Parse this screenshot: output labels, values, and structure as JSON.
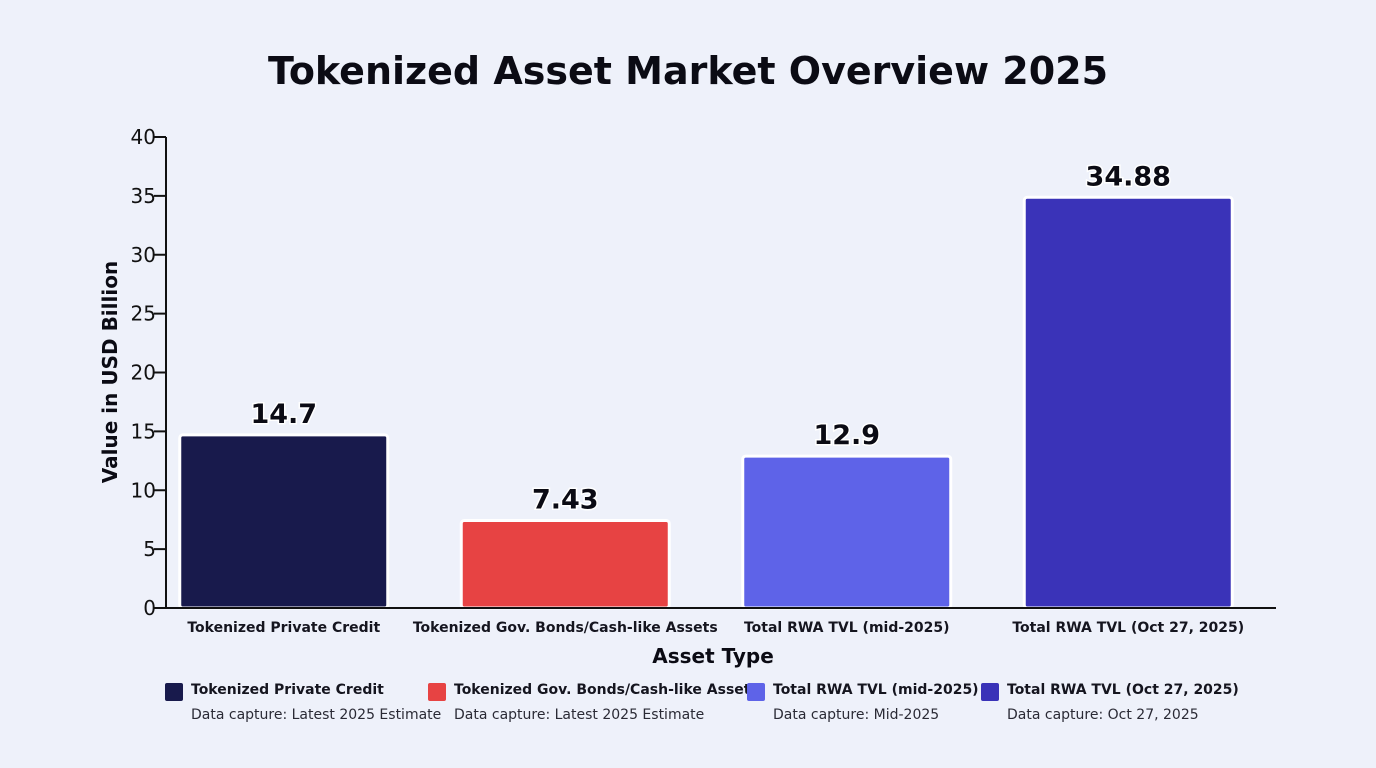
{
  "chart_data": {
    "type": "bar",
    "title": "Tokenized Asset Market Overview 2025",
    "xlabel": "Asset Type",
    "ylabel": "Value in USD Billion",
    "ylim": [
      0,
      40
    ],
    "yticks": [
      0,
      5,
      10,
      15,
      20,
      25,
      30,
      35,
      40
    ],
    "grid": false,
    "legend_position": "bottom",
    "categories": [
      "Tokenized Private Credit",
      "Tokenized Gov. Bonds/Cash-like Assets",
      "Total RWA TVL (mid-2025)",
      "Total RWA TVL (Oct 27, 2025)"
    ],
    "values": [
      14.7,
      7.43,
      12.9,
      34.88
    ],
    "value_labels": [
      "14.7",
      "7.43",
      "12.9",
      "34.88"
    ],
    "colors": [
      "#181a4c",
      "#e74343",
      "#5e63e8",
      "#3a33b8"
    ],
    "legend": [
      {
        "name": "Tokenized Private Credit",
        "note": "Data capture: Latest 2025 Estimate",
        "color": "#181a4c"
      },
      {
        "name": "Tokenized Gov. Bonds/Cash-like Assets",
        "note": "Data capture: Latest 2025 Estimate",
        "color": "#e74343"
      },
      {
        "name": "Total RWA TVL (mid-2025)",
        "note": "Data capture: Mid-2025",
        "color": "#5e63e8"
      },
      {
        "name": "Total RWA TVL (Oct 27, 2025)",
        "note": "Data capture: Oct 27, 2025",
        "color": "#3a33b8"
      }
    ]
  }
}
